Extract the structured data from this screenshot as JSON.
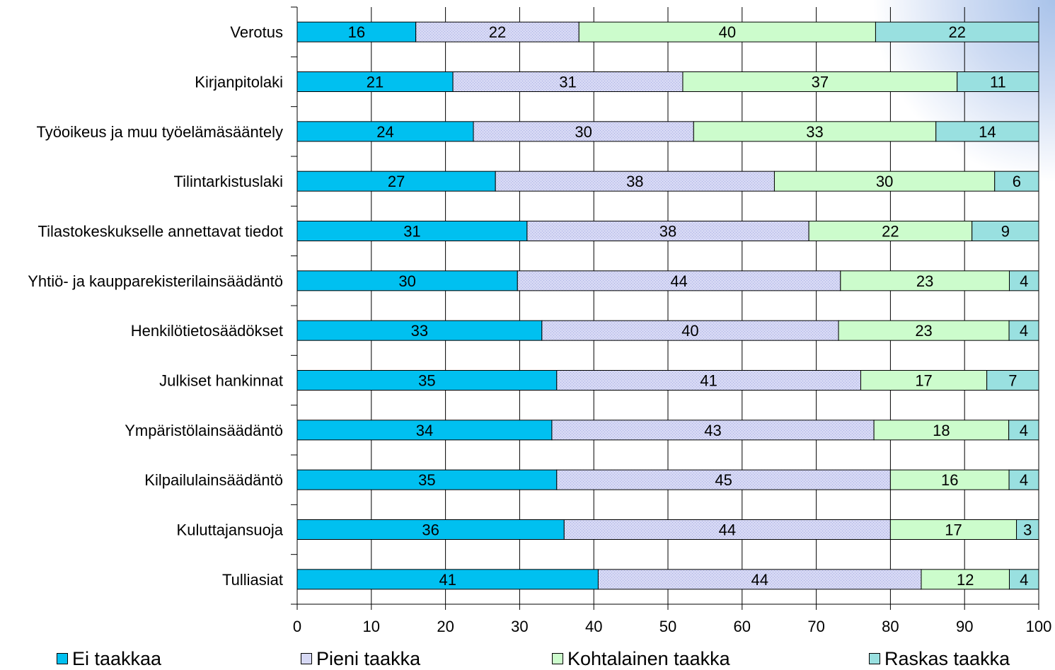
{
  "chart_data": {
    "type": "bar",
    "orientation": "horizontal",
    "stacked": true,
    "categories": [
      "Verotus",
      "Kirjanpitolaki",
      "Työoikeus ja muu työelämäsääntely",
      "Tilintarkistuslaki",
      "Tilastokeskukselle annettavat tiedot",
      "Yhtiö- ja kaupparekisterilainsäädäntö",
      "Henkilötietosäädökset",
      "Julkiset hankinnat",
      "Ympäristölainsäädäntö",
      "Kilpailulainsäädäntö",
      "Kuluttajansuoja",
      "Tulliasiat"
    ],
    "series": [
      {
        "name": "Ei taakkaa",
        "color": "#00c0f0",
        "values": [
          16,
          21,
          24,
          27,
          31,
          30,
          33,
          35,
          34,
          35,
          36,
          41
        ]
      },
      {
        "name": "Pieni taakka",
        "color": "#d6d8f4",
        "values": [
          22,
          31,
          30,
          38,
          38,
          44,
          40,
          41,
          43,
          45,
          44,
          44
        ]
      },
      {
        "name": "Kohtalainen taakka",
        "color": "#ccfccc",
        "values": [
          40,
          37,
          33,
          30,
          22,
          23,
          23,
          17,
          18,
          16,
          17,
          12
        ]
      },
      {
        "name": "Raskas taakka",
        "color": "#99e0e0",
        "values": [
          22,
          11,
          14,
          6,
          9,
          4,
          4,
          7,
          4,
          4,
          3,
          4
        ]
      }
    ],
    "xlim": [
      0,
      100
    ],
    "xticks": [
      0,
      10,
      20,
      30,
      40,
      50,
      60,
      70,
      80,
      90,
      100
    ],
    "grid": "vertical",
    "legend_position": "bottom"
  }
}
